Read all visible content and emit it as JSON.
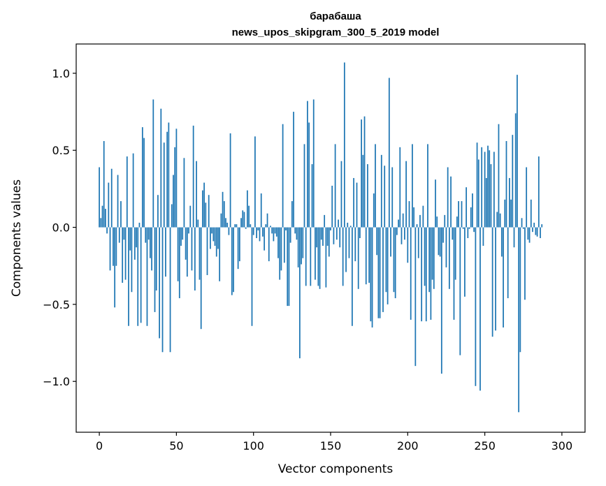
{
  "chart_data": {
    "type": "bar",
    "title": "барабаша",
    "subtitle": "news_upos_skipgram_300_5_2019 model",
    "xlabel": "Vector components",
    "ylabel": "Components values",
    "xlim": [
      -15,
      315
    ],
    "ylim": [
      -1.33,
      1.19
    ],
    "x_ticks": [
      0,
      50,
      100,
      150,
      200,
      250,
      300
    ],
    "x_tick_labels": [
      "0",
      "50",
      "100",
      "150",
      "200",
      "250",
      "300"
    ],
    "y_ticks": [
      -1.0,
      -0.5,
      0.0,
      0.5,
      1.0
    ],
    "y_tick_labels": [
      "−1.0",
      "−0.5",
      "0.0",
      "0.5",
      "1.0"
    ],
    "bar_color": "#1f77b4",
    "x_start": 0,
    "values": [
      0.39,
      0.06,
      0.14,
      0.56,
      0.12,
      -0.04,
      0.29,
      -0.28,
      0.38,
      -0.25,
      -0.52,
      -0.25,
      0.34,
      -0.1,
      0.17,
      -0.36,
      -0.08,
      -0.34,
      0.46,
      -0.64,
      -0.15,
      -0.42,
      0.48,
      -0.21,
      -0.13,
      -0.64,
      0.03,
      -0.62,
      0.65,
      0.58,
      -0.1,
      -0.64,
      -0.08,
      -0.2,
      -0.28,
      0.83,
      -0.55,
      -0.41,
      0.21,
      -0.72,
      0.77,
      -0.81,
      0.55,
      -0.32,
      0.62,
      0.68,
      -0.81,
      0.15,
      0.34,
      0.52,
      0.64,
      -0.35,
      -0.46,
      -0.12,
      -0.08,
      0.45,
      -0.21,
      -0.32,
      -0.04,
      0.14,
      -0.28,
      0.66,
      -0.41,
      0.43,
      0.05,
      -0.34,
      -0.66,
      0.24,
      0.29,
      0.16,
      -0.31,
      0.21,
      -0.14,
      -0.04,
      -0.09,
      -0.12,
      -0.19,
      -0.14,
      -0.35,
      0.09,
      0.23,
      0.17,
      0.06,
      0.03,
      -0.05,
      0.61,
      -0.44,
      -0.42,
      0.02,
      0.02,
      -0.27,
      -0.22,
      0.06,
      0.11,
      0.1,
      -0.01,
      0.24,
      0.14,
      0.02,
      -0.64,
      -0.05,
      0.59,
      -0.07,
      -0.02,
      -0.09,
      0.22,
      -0.06,
      -0.15,
      0.02,
      0.09,
      -0.22,
      0.01,
      -0.04,
      -0.09,
      -0.04,
      -0.06,
      -0.2,
      -0.34,
      -0.28,
      0.67,
      -0.23,
      -0.02,
      -0.51,
      -0.51,
      -0.1,
      0.17,
      0.75,
      -0.04,
      -0.08,
      -0.26,
      -0.85,
      -0.24,
      -0.2,
      0.54,
      -0.38,
      0.82,
      0.68,
      -0.38,
      0.41,
      0.83,
      -0.34,
      -0.13,
      -0.38,
      -0.4,
      -0.08,
      -0.12,
      0.08,
      -0.39,
      -0.12,
      -0.19,
      -0.02,
      0.27,
      -0.11,
      0.54,
      -0.08,
      0.05,
      -0.13,
      0.43,
      -0.38,
      1.07,
      -0.29,
      0.03,
      -0.2,
      0.01,
      -0.64,
      0.32,
      -0.22,
      0.29,
      -0.4,
      -0.07,
      0.7,
      0.47,
      0.72,
      -0.37,
      0.41,
      -0.36,
      -0.61,
      -0.65,
      0.22,
      0.54,
      -0.18,
      -0.59,
      -0.59,
      0.47,
      -0.55,
      0.4,
      -0.42,
      -0.5,
      0.97,
      -0.19,
      0.39,
      -0.42,
      -0.46,
      -0.05,
      0.05,
      0.52,
      -0.11,
      0.09,
      -0.08,
      0.43,
      -0.23,
      0.17,
      -0.6,
      0.54,
      0.13,
      -0.9,
      0.02,
      -0.2,
      0.08,
      -0.61,
      0.14,
      -0.38,
      -0.61,
      0.54,
      -0.42,
      -0.6,
      -0.34,
      -0.4,
      0.31,
      0.07,
      -0.18,
      -0.19,
      -0.95,
      -0.1,
      0.08,
      -0.26,
      0.39,
      -0.4,
      0.33,
      -0.08,
      -0.6,
      -0.34,
      0.07,
      0.17,
      -0.83,
      0.17,
      -0.01,
      -0.45,
      0.26,
      -0.07,
      -0.01,
      0.13,
      0.22,
      -0.03,
      -1.03,
      0.55,
      0.44,
      -1.06,
      0.52,
      -0.12,
      0.49,
      0.32,
      0.53,
      0.5,
      0.41,
      -0.71,
      0.49,
      -0.67,
      0.1,
      0.67,
      0.09,
      -0.19,
      -0.65,
      0.18,
      0.56,
      -0.46,
      0.32,
      0.18,
      0.6,
      -0.13,
      0.74,
      0.99,
      -1.2,
      -0.81,
      0.06,
      -0.01,
      -0.47,
      0.39,
      -0.08,
      -0.1,
      0.18,
      -0.03,
      0.03,
      -0.05,
      -0.06,
      0.46,
      -0.07,
      0.02
    ]
  }
}
